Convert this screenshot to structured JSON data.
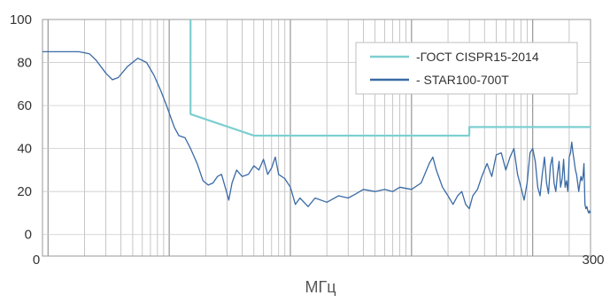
{
  "chart_data": {
    "type": "line",
    "xlabel": "МГц",
    "ylabel": "",
    "x_tick_labels": [
      "0",
      "300"
    ],
    "y_tick_labels": [
      "100",
      "80",
      "60",
      "40",
      "20",
      "0"
    ],
    "xlim": [
      0,
      300
    ],
    "ylim": [
      -10,
      100
    ],
    "x_scale": "log",
    "grid": true,
    "legend_position": "top-right",
    "series": [
      {
        "name": "-ГОСТ CISPR15-2014",
        "color": "#7ecfd0",
        "points": [
          [
            0.15,
            100
          ],
          [
            0.15,
            56
          ],
          [
            0.5,
            46
          ],
          [
            30,
            46
          ],
          [
            30,
            50
          ],
          [
            300,
            50
          ]
        ]
      },
      {
        "name": "- STAR100-700T",
        "color": "#3a6aa5",
        "points": [
          [
            0.009,
            85
          ],
          [
            0.012,
            85
          ],
          [
            0.018,
            85
          ],
          [
            0.022,
            84
          ],
          [
            0.025,
            81
          ],
          [
            0.03,
            75
          ],
          [
            0.034,
            72
          ],
          [
            0.038,
            73
          ],
          [
            0.045,
            78
          ],
          [
            0.055,
            82
          ],
          [
            0.065,
            80
          ],
          [
            0.075,
            74
          ],
          [
            0.085,
            67
          ],
          [
            0.095,
            60
          ],
          [
            0.11,
            50
          ],
          [
            0.12,
            46
          ],
          [
            0.135,
            45
          ],
          [
            0.15,
            40
          ],
          [
            0.17,
            33
          ],
          [
            0.19,
            25
          ],
          [
            0.21,
            23
          ],
          [
            0.23,
            24
          ],
          [
            0.25,
            27
          ],
          [
            0.27,
            28
          ],
          [
            0.29,
            22
          ],
          [
            0.31,
            16
          ],
          [
            0.33,
            24
          ],
          [
            0.36,
            30
          ],
          [
            0.4,
            27
          ],
          [
            0.45,
            28
          ],
          [
            0.5,
            32
          ],
          [
            0.55,
            30
          ],
          [
            0.6,
            35
          ],
          [
            0.65,
            28
          ],
          [
            0.7,
            31
          ],
          [
            0.75,
            36
          ],
          [
            0.8,
            28
          ],
          [
            0.9,
            26
          ],
          [
            1.0,
            22
          ],
          [
            1.1,
            14
          ],
          [
            1.2,
            17
          ],
          [
            1.4,
            13
          ],
          [
            1.6,
            17
          ],
          [
            2.0,
            15
          ],
          [
            2.5,
            18
          ],
          [
            3.0,
            17
          ],
          [
            3.5,
            19
          ],
          [
            4.0,
            21
          ],
          [
            5.0,
            20
          ],
          [
            6.0,
            21
          ],
          [
            7.0,
            20
          ],
          [
            8.0,
            22
          ],
          [
            10.0,
            21
          ],
          [
            12.0,
            24
          ],
          [
            14.0,
            33
          ],
          [
            15.0,
            36
          ],
          [
            16.0,
            30
          ],
          [
            18.0,
            22
          ],
          [
            20.0,
            18
          ],
          [
            22.0,
            14
          ],
          [
            24.0,
            18
          ],
          [
            26.0,
            20
          ],
          [
            28.0,
            14
          ],
          [
            30.0,
            12
          ],
          [
            32.0,
            18
          ],
          [
            35.0,
            21
          ],
          [
            38.0,
            27
          ],
          [
            42.0,
            33
          ],
          [
            46.0,
            27
          ],
          [
            50.0,
            37
          ],
          [
            55.0,
            38
          ],
          [
            60.0,
            30
          ],
          [
            65.0,
            36
          ],
          [
            70.0,
            40
          ],
          [
            75.0,
            28
          ],
          [
            80.0,
            22
          ],
          [
            85.0,
            16
          ],
          [
            90.0,
            24
          ],
          [
            95.0,
            38
          ],
          [
            100.0,
            40
          ],
          [
            105.0,
            34
          ],
          [
            110.0,
            22
          ],
          [
            115.0,
            18
          ],
          [
            120.0,
            28
          ],
          [
            125.0,
            36
          ],
          [
            130.0,
            24
          ],
          [
            135.0,
            19
          ],
          [
            140.0,
            32
          ],
          [
            145.0,
            36
          ],
          [
            150.0,
            24
          ],
          [
            155.0,
            20
          ],
          [
            160.0,
            28
          ],
          [
            165.0,
            34
          ],
          [
            170.0,
            22
          ],
          [
            175.0,
            26
          ],
          [
            180.0,
            35
          ],
          [
            185.0,
            22
          ],
          [
            190.0,
            25
          ],
          [
            195.0,
            20
          ],
          [
            200.0,
            36
          ],
          [
            205.0,
            38
          ],
          [
            210.0,
            43
          ],
          [
            215.0,
            38
          ],
          [
            220.0,
            34
          ],
          [
            225.0,
            30
          ],
          [
            230.0,
            28
          ],
          [
            235.0,
            24
          ],
          [
            240.0,
            20
          ],
          [
            245.0,
            24
          ],
          [
            250.0,
            27
          ],
          [
            255.0,
            25
          ],
          [
            260.0,
            27
          ],
          [
            265.0,
            33
          ],
          [
            270.0,
            14
          ],
          [
            275.0,
            12
          ],
          [
            280.0,
            13
          ],
          [
            285.0,
            11
          ],
          [
            290.0,
            10
          ],
          [
            295.0,
            11
          ],
          [
            300.0,
            10
          ]
        ]
      }
    ]
  }
}
